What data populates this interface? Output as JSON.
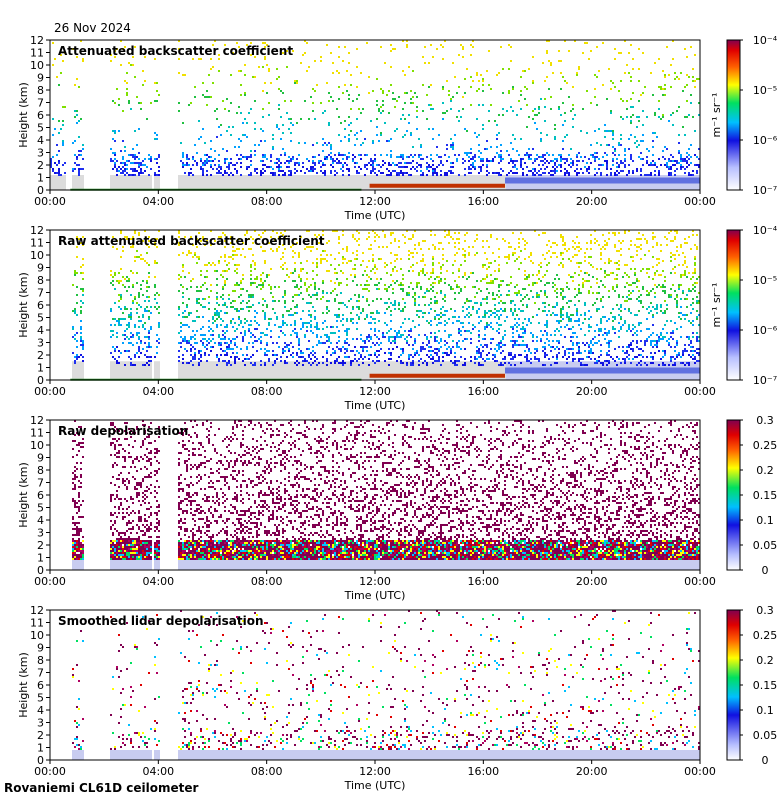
{
  "date_label": "26 Nov 2024",
  "footer": "Rovaniemi CL61D ceilometer",
  "chart_data": [
    {
      "type": "heatmap",
      "title": "Attenuated backscatter coefficient",
      "xlabel": "Time (UTC)",
      "ylabel": "Height (km)",
      "xticks": [
        "00:00",
        "04:00",
        "08:00",
        "12:00",
        "16:00",
        "20:00",
        "00:00"
      ],
      "yticks": [
        0,
        1,
        2,
        3,
        4,
        5,
        6,
        7,
        8,
        9,
        10,
        11,
        12
      ],
      "ylim": [
        0,
        12
      ],
      "xlim_hours": [
        0,
        24
      ],
      "colorbar": {
        "scale": "log",
        "range": [
          1e-07,
          0.0001
        ],
        "ticks": [
          "10⁻⁷",
          "10⁻⁶",
          "10⁻⁵",
          "10⁻⁴"
        ],
        "unit": "m⁻¹ sr⁻¹"
      },
      "data_gaps_hours": [
        [
          0.55,
          0.75
        ],
        [
          1.2,
          2.2
        ],
        [
          3.72,
          3.82
        ],
        [
          4.0,
          4.72
        ]
      ]
    },
    {
      "type": "heatmap",
      "title": "Raw attenuated backscatter coefficient",
      "xlabel": "Time (UTC)",
      "ylabel": "Height (km)",
      "xticks": [
        "00:00",
        "04:00",
        "08:00",
        "12:00",
        "16:00",
        "20:00",
        "00:00"
      ],
      "yticks": [
        0,
        1,
        2,
        3,
        4,
        5,
        6,
        7,
        8,
        9,
        10,
        11,
        12
      ],
      "ylim": [
        0,
        12
      ],
      "xlim_hours": [
        0,
        24
      ],
      "colorbar": {
        "scale": "log",
        "range": [
          1e-07,
          0.0001
        ],
        "ticks": [
          "10⁻⁷",
          "10⁻⁶",
          "10⁻⁵",
          "10⁻⁴"
        ],
        "unit": "m⁻¹ sr⁻¹"
      },
      "data_gaps_hours": [
        [
          0,
          0.75
        ],
        [
          1.2,
          2.2
        ],
        [
          3.72,
          3.82
        ],
        [
          4.0,
          4.72
        ]
      ]
    },
    {
      "type": "heatmap",
      "title": "Raw depolarisation",
      "xlabel": "Time (UTC)",
      "ylabel": "Height (km)",
      "xticks": [
        "00:00",
        "04:00",
        "08:00",
        "12:00",
        "16:00",
        "20:00",
        "00:00"
      ],
      "yticks": [
        0,
        1,
        2,
        3,
        4,
        5,
        6,
        7,
        8,
        9,
        10,
        11,
        12
      ],
      "ylim": [
        0,
        12
      ],
      "xlim_hours": [
        0,
        24
      ],
      "colorbar": {
        "scale": "linear",
        "range": [
          0,
          0.3
        ],
        "ticks": [
          "0",
          "0.05",
          "0.1",
          "0.15",
          "0.2",
          "0.25",
          "0.3"
        ]
      },
      "data_gaps_hours": [
        [
          0,
          0.75
        ],
        [
          1.2,
          2.2
        ],
        [
          3.72,
          3.82
        ],
        [
          4.0,
          4.72
        ]
      ]
    },
    {
      "type": "heatmap",
      "title": "Smoothed lidar depolarisation",
      "xlabel": "Time (UTC)",
      "ylabel": "Height (km)",
      "xticks": [
        "00:00",
        "04:00",
        "08:00",
        "12:00",
        "16:00",
        "20:00",
        "00:00"
      ],
      "yticks": [
        0,
        1,
        2,
        3,
        4,
        5,
        6,
        7,
        8,
        9,
        10,
        11,
        12
      ],
      "ylim": [
        0,
        12
      ],
      "xlim_hours": [
        0,
        24
      ],
      "colorbar": {
        "scale": "linear",
        "range": [
          0,
          0.3
        ],
        "ticks": [
          "0",
          "0.05",
          "0.1",
          "0.15",
          "0.2",
          "0.25",
          "0.3"
        ]
      },
      "data_gaps_hours": [
        [
          0,
          0.75
        ],
        [
          1.2,
          2.2
        ],
        [
          3.72,
          3.82
        ],
        [
          4.0,
          4.72
        ]
      ]
    }
  ]
}
